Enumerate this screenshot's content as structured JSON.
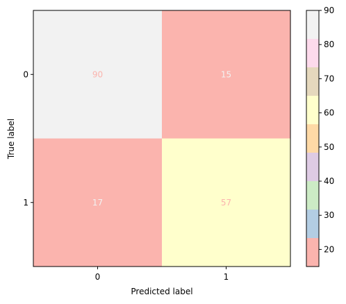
{
  "chart_data": {
    "type": "heatmap",
    "title": "",
    "xlabel": "Predicted label",
    "ylabel": "True label",
    "x_categories": [
      "0",
      "1"
    ],
    "y_categories": [
      "0",
      "1"
    ],
    "values": [
      [
        90,
        15
      ],
      [
        17,
        57
      ]
    ],
    "colorbar": {
      "range": [
        15,
        90
      ],
      "ticks": [
        "20",
        "30",
        "40",
        "50",
        "60",
        "70",
        "80",
        "90"
      ],
      "colormap": "Pastel1"
    },
    "colors": {
      "pastel1": [
        "#fbb4ae",
        "#b3cde3",
        "#ccebc5",
        "#decbe4",
        "#fed9a6",
        "#ffffcc",
        "#e5d8bd",
        "#fddaec",
        "#f2f2f2"
      ],
      "cell_text": [
        "#fbb4ae",
        "#f2f2f2"
      ]
    },
    "grid": false
  }
}
